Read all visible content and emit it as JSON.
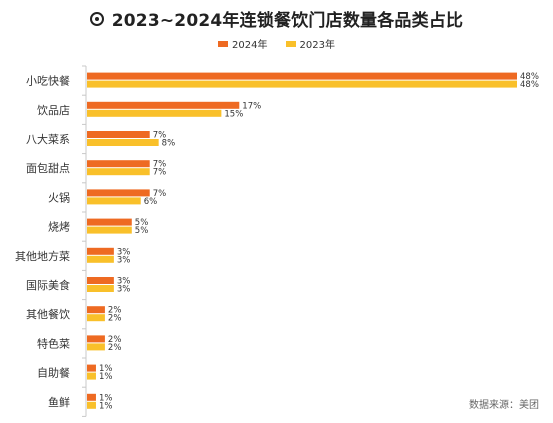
{
  "title": "2023~2024年连锁餐饮门店数量各品类占比",
  "source": "数据来源：美团",
  "colors": {
    "s2024": "#EE6A22",
    "s2023": "#F9C02A",
    "axis": "#c8c8c8",
    "text": "#333333"
  },
  "chart_data": {
    "type": "bar",
    "orientation": "horizontal",
    "categories": [
      "小吃快餐",
      "饮品店",
      "八大菜系",
      "面包甜点",
      "火锅",
      "烧烤",
      "其他地方菜",
      "国际美食",
      "其他餐饮",
      "特色菜",
      "自助餐",
      "鱼鲜"
    ],
    "series": [
      {
        "name": "2024年",
        "values": [
          48,
          17,
          7,
          7,
          7,
          5,
          3,
          3,
          2,
          2,
          1,
          1
        ]
      },
      {
        "name": "2023年",
        "values": [
          48,
          15,
          8,
          7,
          6,
          5,
          3,
          3,
          2,
          2,
          1,
          1
        ]
      }
    ],
    "value_suffix": "%",
    "xlim": [
      0,
      48
    ],
    "title": "2023~2024年连锁餐饮门店数量各品类占比",
    "legend_position": "top-center"
  }
}
